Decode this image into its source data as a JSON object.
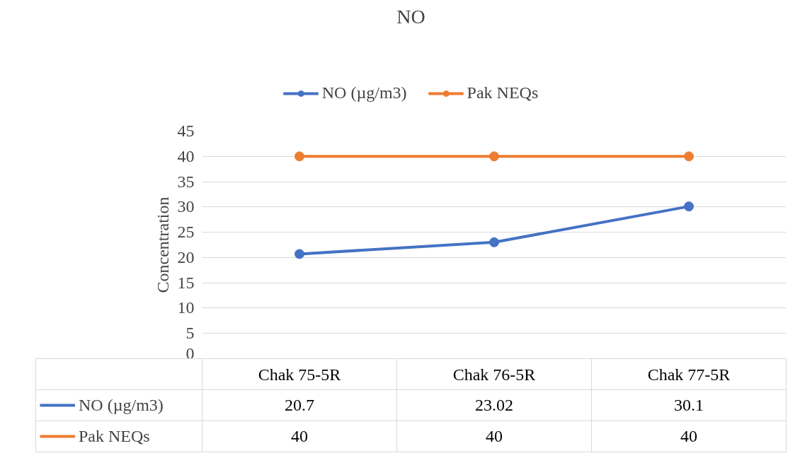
{
  "chart_data": {
    "type": "line",
    "title": "NO",
    "ylabel": "Concentration",
    "categories": [
      "Chak 75-5R",
      "Chak 76-5R",
      "Chak 77-5R"
    ],
    "series": [
      {
        "name": "NO (µg/m3)",
        "color": "#4472c4",
        "values": [
          20.7,
          23.02,
          30.1
        ]
      },
      {
        "name": "Pak NEQs",
        "color": "#ed7d31",
        "values": [
          40,
          40,
          40
        ]
      }
    ],
    "ylim": [
      0,
      45
    ],
    "yticks": [
      0,
      5,
      10,
      15,
      20,
      25,
      30,
      35,
      40,
      45
    ],
    "grid": "y",
    "legend": "top",
    "marker": "circle",
    "line_style": "solid",
    "data_labels": true
  }
}
